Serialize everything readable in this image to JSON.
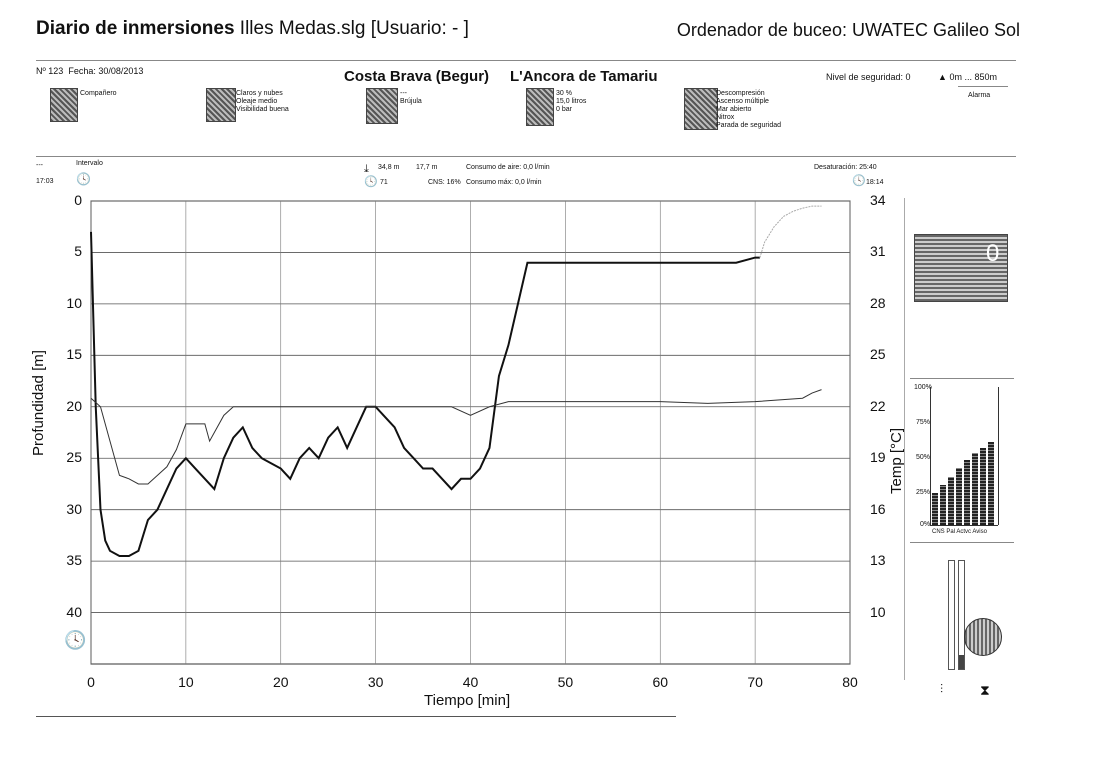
{
  "header": {
    "title_bold": "Diario de inmersiones",
    "title_rest": " Illes Medas.slg  [Usuario:  - ]",
    "computer": "Ordenador de buceo: UWATEC Galileo Sol"
  },
  "dive": {
    "number": "Nº 123",
    "date_label": "Fecha:",
    "date": "30/08/2013",
    "site_region": "Costa Brava (Begur)",
    "site_name": "L'Ancora de Tamariu",
    "safety_level": "Nivel de seguridad: 0",
    "altitude": "0m ... 850m",
    "alarm": "Alarma"
  },
  "info_blocks": {
    "partner": "Compañero",
    "conditions": [
      "Claros y nubes",
      "Oleaje medio",
      "Visibilidad buena"
    ],
    "compass": [
      "---",
      "Brújula"
    ],
    "tank": [
      "30 %",
      "15,0 litros",
      "0 bar"
    ],
    "dive_type": [
      "Descompresión",
      "Ascenso múltiple",
      "Mar abierto",
      "Nitrox",
      "Parada de seguridad"
    ]
  },
  "stats": {
    "interval_dash": "---",
    "interval_label": "Intervalo",
    "entry_time": "17:03",
    "max_depth": "34,8 m",
    "avg_depth": "17,7 m",
    "air_consumption": "Consumo de aire:  0,0 l/min",
    "duration": "71",
    "cns": "CNS: 16%",
    "max_consumption": "Consumo máx:  0,0 l/min",
    "desaturation": "Desaturación:  25:40",
    "exit_time": "18:14"
  },
  "side_panel": {
    "counter": "0",
    "bar_ymax": "100%",
    "bar_y75": "75%",
    "bar_y50": "50%",
    "bar_y25": "25%",
    "bar_y0": "0%",
    "bar_labels": "CNS  Pal  Actvc  Aviso"
  },
  "chart_data": {
    "type": "line",
    "xlabel": "Tiempo [min]",
    "ylabel": "Profundidad [m]",
    "y2label": "Temp [°C]",
    "xlim": [
      0,
      80
    ],
    "ylim": [
      0,
      45
    ],
    "y2lim": [
      7,
      34
    ],
    "x_ticks": [
      0,
      10,
      20,
      30,
      40,
      50,
      60,
      70,
      80
    ],
    "y_ticks": [
      0,
      5,
      10,
      15,
      20,
      25,
      30,
      35,
      40
    ],
    "y2_ticks": [
      34,
      31,
      28,
      25,
      22,
      19,
      16,
      13,
      10
    ],
    "grid": true,
    "series": [
      {
        "x": [
          0,
          0.5,
          1,
          1.5,
          2,
          3,
          4,
          5,
          6,
          7,
          8,
          9,
          10,
          11,
          12,
          13,
          14,
          15,
          16,
          17,
          18,
          19,
          20,
          21,
          22,
          23,
          24,
          25,
          26,
          27,
          28,
          29,
          30,
          31,
          32,
          33,
          34,
          35,
          36,
          37,
          38,
          39,
          40,
          41,
          42,
          43,
          44,
          45,
          46,
          47,
          48,
          50,
          55,
          60,
          65,
          68,
          70,
          70.5
        ],
        "y": [
          3,
          20,
          30,
          33,
          34,
          34.5,
          34.5,
          34,
          31,
          30,
          28,
          26,
          25,
          26,
          27,
          28,
          25,
          23,
          22,
          24,
          25,
          25.5,
          26,
          27,
          25,
          24,
          25,
          23,
          22,
          24,
          22,
          20,
          20,
          21,
          22,
          24,
          25,
          26,
          26,
          27,
          28,
          27,
          27,
          26,
          24,
          17,
          14,
          10,
          6,
          6,
          6,
          6,
          6,
          6,
          6,
          6,
          5.5,
          5.5
        ]
      },
      {
        "x": [
          0,
          1,
          2,
          3,
          4,
          5,
          6,
          7,
          8,
          9,
          10,
          12,
          12.5,
          13,
          14,
          15,
          17,
          20,
          23,
          26,
          30,
          35,
          38,
          40,
          42,
          44,
          48,
          55,
          60,
          65,
          70,
          75,
          76,
          77
        ],
        "temp": [
          22.5,
          22,
          20,
          18,
          17.8,
          17.5,
          17.5,
          18,
          18.5,
          19.5,
          21,
          21,
          20,
          20.5,
          21.5,
          22,
          22,
          22,
          22,
          22,
          22,
          22,
          22,
          21.5,
          22,
          22.3,
          22.3,
          22.3,
          22.3,
          22.2,
          22.3,
          22.5,
          22.8,
          23
        ]
      },
      {
        "x": [
          70.5,
          71,
          72,
          73,
          74,
          75,
          76,
          77
        ],
        "y": [
          5.5,
          4,
          2.5,
          1.5,
          1,
          0.7,
          0.5,
          0.5
        ]
      }
    ]
  }
}
